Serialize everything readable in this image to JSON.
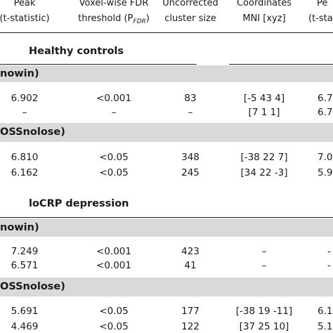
{
  "headers": {
    "col_peak_line1": "Peak",
    "col_peak_line2": "(t-statistic)",
    "col_fdr_line1": "Voxel-wise FDR",
    "col_fdr_line2_prefix": "threshold (P",
    "col_fdr_line2_sub": "FDR",
    "col_fdr_line2_suffix": ")",
    "col_cluster_line1": "Uncorrected",
    "col_cluster_line2": "cluster size",
    "col_coord_line1": "Coordinates",
    "col_coord_line2": "MNI [xyz]",
    "col_peak2_line1": "Pe",
    "col_peak2_line2": "(t-sta"
  },
  "groups": [
    {
      "title": "Healthy controls",
      "sections": [
        {
          "label": "nowin)",
          "rows": [
            {
              "peak": "6.902",
              "fdr": "<0.001",
              "cluster": "83",
              "coords": "[-5 43 4]",
              "peak2": "6.7"
            },
            {
              "peak": "–",
              "fdr": "–",
              "cluster": "–",
              "coords": "[7 1 1]",
              "peak2": "6.7"
            }
          ]
        },
        {
          "label": "OSSnolose)",
          "rows": [
            {
              "peak": "6.810",
              "fdr": "<0.05",
              "cluster": "348",
              "coords": "[-38 22 7]",
              "peak2": "7.0"
            },
            {
              "peak": "6.162",
              "fdr": "<0.05",
              "cluster": "245",
              "coords": "[34 22 -3]",
              "peak2": "5.9"
            }
          ]
        }
      ]
    },
    {
      "title": "loCRP depression",
      "sections": [
        {
          "label": "nowin)",
          "rows": [
            {
              "peak": "7.249",
              "fdr": "<0.001",
              "cluster": "423",
              "coords": "–",
              "peak2": "-"
            },
            {
              "peak": "6.571",
              "fdr": "<0.001",
              "cluster": "41",
              "coords": "–",
              "peak2": "-"
            }
          ]
        },
        {
          "label": "OSSnolose)",
          "rows": [
            {
              "peak": "5.691",
              "fdr": "<0.05",
              "cluster": "177",
              "coords": "[-38 19 -11]",
              "peak2": "6.1"
            },
            {
              "peak": "4.469",
              "fdr": "<0.05",
              "cluster": "122",
              "coords": "[37 25 10]",
              "peak2": "5.1"
            }
          ]
        }
      ]
    }
  ]
}
